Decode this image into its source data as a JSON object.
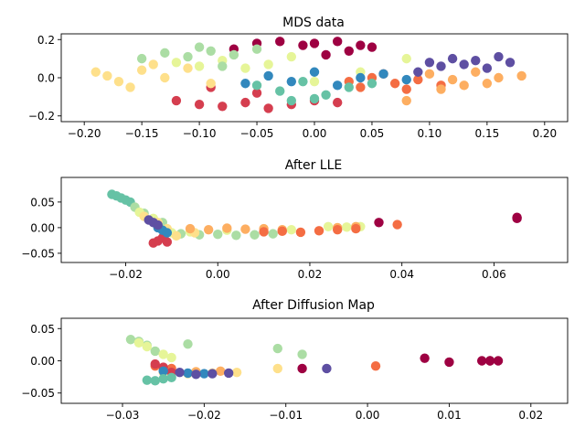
{
  "chart_data": [
    {
      "type": "scatter",
      "title": "MDS data",
      "xlabel": "",
      "ylabel": "",
      "xlim": [
        -0.22,
        0.22
      ],
      "ylim": [
        -0.23,
        0.23
      ],
      "xticks": [
        -0.2,
        -0.15,
        -0.1,
        -0.05,
        0.0,
        0.05,
        0.1,
        0.15,
        0.2
      ],
      "xtick_labels": [
        "−0.20",
        "−0.15",
        "−0.10",
        "−0.05",
        "0.00",
        "0.05",
        "0.10",
        "0.15",
        "0.20"
      ],
      "yticks": [
        -0.2,
        0.0,
        0.2
      ],
      "ytick_labels": [
        "−0.2",
        "0.0",
        "0.2"
      ],
      "grid": false,
      "colormap": "Spectral",
      "series": [
        {
          "color": "#9e0142",
          "x": [
            -0.05,
            -0.03,
            -0.01,
            0.0,
            0.02,
            0.04,
            0.05,
            -0.07,
            0.03,
            0.01
          ],
          "y": [
            0.18,
            0.19,
            0.17,
            0.18,
            0.19,
            0.17,
            0.16,
            0.15,
            0.14,
            0.12
          ]
        },
        {
          "color": "#d53e4f",
          "x": [
            -0.12,
            -0.1,
            -0.08,
            -0.06,
            -0.04,
            -0.02,
            0.0,
            0.02,
            -0.09,
            -0.05
          ],
          "y": [
            -0.12,
            -0.14,
            -0.15,
            -0.13,
            -0.16,
            -0.14,
            -0.12,
            -0.13,
            -0.05,
            -0.08
          ]
        },
        {
          "color": "#f46d43",
          "x": [
            0.03,
            0.05,
            0.07,
            0.09,
            0.11,
            0.06,
            0.08,
            0.04
          ],
          "y": [
            -0.02,
            0.0,
            -0.03,
            -0.01,
            -0.04,
            0.02,
            -0.06,
            -0.05
          ]
        },
        {
          "color": "#fdae61",
          "x": [
            0.1,
            0.12,
            0.14,
            0.16,
            0.18,
            0.13,
            0.15,
            0.08,
            0.11
          ],
          "y": [
            0.02,
            -0.01,
            0.03,
            0.0,
            0.01,
            -0.04,
            -0.03,
            -0.12,
            -0.06
          ]
        },
        {
          "color": "#fee08b",
          "x": [
            -0.19,
            -0.17,
            -0.15,
            -0.13,
            -0.11,
            -0.09,
            -0.16,
            -0.14,
            -0.18
          ],
          "y": [
            0.03,
            -0.02,
            0.04,
            0.0,
            0.05,
            -0.03,
            -0.05,
            0.07,
            0.01
          ]
        },
        {
          "color": "#e6f598",
          "x": [
            -0.12,
            -0.1,
            -0.08,
            -0.06,
            -0.04,
            0.0,
            0.04,
            0.08,
            -0.02
          ],
          "y": [
            0.08,
            0.06,
            0.09,
            0.05,
            0.07,
            -0.02,
            0.03,
            0.1,
            0.11
          ]
        },
        {
          "color": "#abdda4",
          "x": [
            -0.15,
            -0.13,
            -0.11,
            -0.09,
            -0.07,
            -0.05,
            -0.1,
            -0.08
          ],
          "y": [
            0.1,
            0.13,
            0.11,
            0.14,
            0.12,
            0.15,
            0.16,
            0.06
          ]
        },
        {
          "color": "#66c2a5",
          "x": [
            -0.05,
            -0.03,
            -0.01,
            0.01,
            0.03,
            0.05,
            0.0,
            -0.02
          ],
          "y": [
            -0.04,
            -0.07,
            -0.02,
            -0.09,
            -0.05,
            -0.03,
            -0.11,
            -0.12
          ]
        },
        {
          "color": "#3288bd",
          "x": [
            -0.04,
            -0.02,
            0.0,
            0.02,
            0.04,
            0.06,
            0.08,
            -0.06
          ],
          "y": [
            0.01,
            -0.02,
            0.03,
            -0.04,
            0.0,
            0.02,
            -0.01,
            -0.03
          ]
        },
        {
          "color": "#5e4fa2",
          "x": [
            0.1,
            0.12,
            0.14,
            0.16,
            0.11,
            0.13,
            0.15,
            0.17,
            0.09
          ],
          "y": [
            0.08,
            0.1,
            0.09,
            0.11,
            0.06,
            0.07,
            0.05,
            0.08,
            0.03
          ]
        }
      ]
    },
    {
      "type": "scatter",
      "title": "After LLE",
      "xlabel": "",
      "ylabel": "",
      "xlim": [
        -0.034,
        0.076
      ],
      "ylim": [
        -0.068,
        0.098
      ],
      "xticks": [
        -0.02,
        0.0,
        0.02,
        0.04,
        0.06
      ],
      "xtick_labels": [
        "−0.02",
        "0.00",
        "0.02",
        "0.04",
        "0.06"
      ],
      "yticks": [
        -0.05,
        0.0,
        0.05
      ],
      "ytick_labels": [
        "−0.05",
        "0.00",
        "0.05"
      ],
      "grid": false,
      "colormap": "Spectral",
      "series": [
        {
          "color": "#66c2a5",
          "x": [
            -0.023,
            -0.022,
            -0.021,
            -0.02,
            -0.019
          ],
          "y": [
            0.065,
            0.062,
            0.058,
            0.054,
            0.05
          ]
        },
        {
          "color": "#abdda4",
          "x": [
            -0.018,
            -0.016,
            -0.012,
            -0.008,
            -0.004,
            0.0,
            0.004,
            0.008,
            0.012
          ],
          "y": [
            0.04,
            0.028,
            0.01,
            -0.012,
            -0.014,
            -0.013,
            -0.015,
            -0.014,
            -0.012
          ]
        },
        {
          "color": "#e6f598",
          "x": [
            -0.017,
            -0.014,
            -0.01,
            -0.006,
            0.002,
            0.016,
            0.024,
            0.028,
            0.031
          ],
          "y": [
            0.03,
            0.018,
            -0.01,
            -0.008,
            -0.005,
            -0.004,
            0.002,
            0.001,
            0.002
          ]
        },
        {
          "color": "#fee08b",
          "x": [
            -0.016,
            -0.013,
            -0.011,
            -0.009,
            -0.005
          ],
          "y": [
            0.022,
            0.01,
            -0.002,
            -0.016,
            -0.01
          ]
        },
        {
          "color": "#fdae61",
          "x": [
            -0.006,
            -0.002,
            0.002,
            0.006,
            0.01,
            0.014,
            0.026,
            0.03
          ],
          "y": [
            -0.002,
            -0.004,
            -0.001,
            -0.003,
            -0.002,
            -0.004,
            0.0,
            0.002
          ]
        },
        {
          "color": "#f46d43",
          "x": [
            0.01,
            0.014,
            0.018,
            0.022,
            0.026,
            0.03,
            0.039
          ],
          "y": [
            -0.008,
            -0.007,
            -0.009,
            -0.006,
            -0.004,
            -0.002,
            0.006
          ]
        },
        {
          "color": "#d53e4f",
          "x": [
            -0.014,
            -0.013,
            -0.012,
            -0.011
          ],
          "y": [
            -0.03,
            -0.026,
            -0.02,
            -0.028
          ]
        },
        {
          "color": "#9e0142",
          "x": [
            0.035,
            0.065,
            0.065
          ],
          "y": [
            0.01,
            0.02,
            0.018
          ]
        },
        {
          "color": "#3288bd",
          "x": [
            -0.013,
            -0.012,
            -0.011
          ],
          "y": [
            0.0,
            -0.005,
            -0.01
          ]
        },
        {
          "color": "#5e4fa2",
          "x": [
            -0.015,
            -0.014,
            -0.013
          ],
          "y": [
            0.015,
            0.01,
            0.005
          ]
        }
      ]
    },
    {
      "type": "scatter",
      "title": "After Diffusion Map",
      "xlabel": "",
      "ylabel": "",
      "xlim": [
        -0.0375,
        0.0245
      ],
      "ylim": [
        -0.066,
        0.066
      ],
      "xticks": [
        -0.03,
        -0.02,
        -0.01,
        0.0,
        0.01,
        0.02
      ],
      "xtick_labels": [
        "−0.03",
        "−0.02",
        "−0.01",
        "0.00",
        "0.01",
        "0.02"
      ],
      "yticks": [
        -0.05,
        0.0,
        0.05
      ],
      "ytick_labels": [
        "−0.05",
        "0.00",
        "0.05"
      ],
      "grid": false,
      "colormap": "Spectral",
      "series": [
        {
          "color": "#abdda4",
          "x": [
            -0.029,
            -0.028,
            -0.027,
            -0.026,
            -0.022,
            -0.011,
            -0.008
          ],
          "y": [
            0.033,
            0.03,
            0.024,
            0.015,
            0.026,
            0.019,
            0.01
          ]
        },
        {
          "color": "#e6f598",
          "x": [
            -0.028,
            -0.027,
            -0.025,
            -0.024
          ],
          "y": [
            0.028,
            0.022,
            0.01,
            0.005
          ]
        },
        {
          "color": "#fee08b",
          "x": [
            -0.025,
            -0.022,
            -0.019,
            -0.016,
            -0.011
          ],
          "y": [
            -0.018,
            -0.02,
            -0.019,
            -0.018,
            -0.012
          ]
        },
        {
          "color": "#fdae61",
          "x": [
            -0.024,
            -0.021,
            -0.018
          ],
          "y": [
            -0.015,
            -0.017,
            -0.016
          ]
        },
        {
          "color": "#f46d43",
          "x": [
            -0.026,
            -0.024,
            0.001
          ],
          "y": [
            -0.008,
            -0.012,
            -0.008
          ]
        },
        {
          "color": "#d53e4f",
          "x": [
            -0.026,
            -0.025,
            -0.024
          ],
          "y": [
            -0.005,
            -0.01,
            -0.018
          ]
        },
        {
          "color": "#9e0142",
          "x": [
            -0.008,
            0.007,
            0.01,
            0.014,
            0.015,
            0.015,
            0.016
          ],
          "y": [
            -0.012,
            0.004,
            -0.002,
            0.0,
            0.0,
            0.0,
            0.0
          ]
        },
        {
          "color": "#3288bd",
          "x": [
            -0.025,
            -0.022,
            -0.02
          ],
          "y": [
            -0.016,
            -0.019,
            -0.02
          ]
        },
        {
          "color": "#5e4fa2",
          "x": [
            -0.023,
            -0.021,
            -0.019,
            -0.017,
            -0.005
          ],
          "y": [
            -0.018,
            -0.021,
            -0.02,
            -0.019,
            -0.012
          ]
        },
        {
          "color": "#66c2a5",
          "x": [
            -0.027,
            -0.026,
            -0.025,
            -0.024
          ],
          "y": [
            -0.03,
            -0.031,
            -0.028,
            -0.026
          ]
        }
      ]
    }
  ]
}
